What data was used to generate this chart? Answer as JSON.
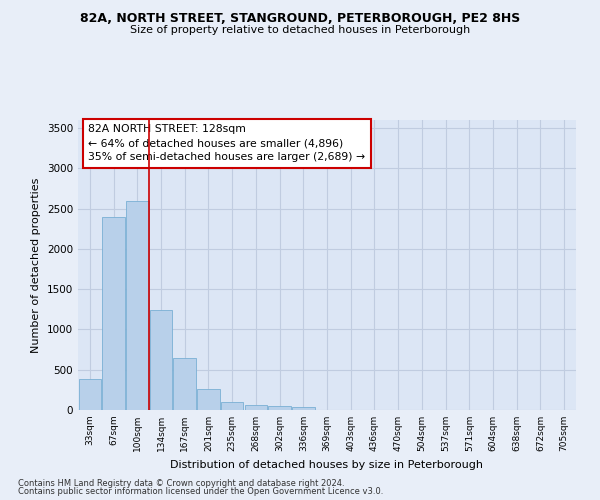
{
  "title_line1": "82A, NORTH STREET, STANGROUND, PETERBOROUGH, PE2 8HS",
  "title_line2": "Size of property relative to detached houses in Peterborough",
  "xlabel": "Distribution of detached houses by size in Peterborough",
  "ylabel": "Number of detached properties",
  "categories": [
    "33sqm",
    "67sqm",
    "100sqm",
    "134sqm",
    "167sqm",
    "201sqm",
    "235sqm",
    "268sqm",
    "302sqm",
    "336sqm",
    "369sqm",
    "403sqm",
    "436sqm",
    "470sqm",
    "504sqm",
    "537sqm",
    "571sqm",
    "604sqm",
    "638sqm",
    "672sqm",
    "705sqm"
  ],
  "values": [
    390,
    2400,
    2600,
    1240,
    640,
    255,
    95,
    60,
    55,
    35,
    0,
    0,
    0,
    0,
    0,
    0,
    0,
    0,
    0,
    0,
    0
  ],
  "bar_color": "#b8d0ea",
  "bar_edge_color": "#7aafd4",
  "vline_x_index": 2.5,
  "vline_color": "#cc0000",
  "annotation_text": "82A NORTH STREET: 128sqm\n← 64% of detached houses are smaller (4,896)\n35% of semi-detached houses are larger (2,689) →",
  "annotation_box_facecolor": "#ffffff",
  "annotation_border_color": "#cc0000",
  "ylim": [
    0,
    3600
  ],
  "yticks": [
    0,
    500,
    1000,
    1500,
    2000,
    2500,
    3000,
    3500
  ],
  "bg_color": "#e8eef8",
  "plot_bg_color": "#dce6f5",
  "grid_color": "#c0cce0",
  "footer_line1": "Contains HM Land Registry data © Crown copyright and database right 2024.",
  "footer_line2": "Contains public sector information licensed under the Open Government Licence v3.0."
}
